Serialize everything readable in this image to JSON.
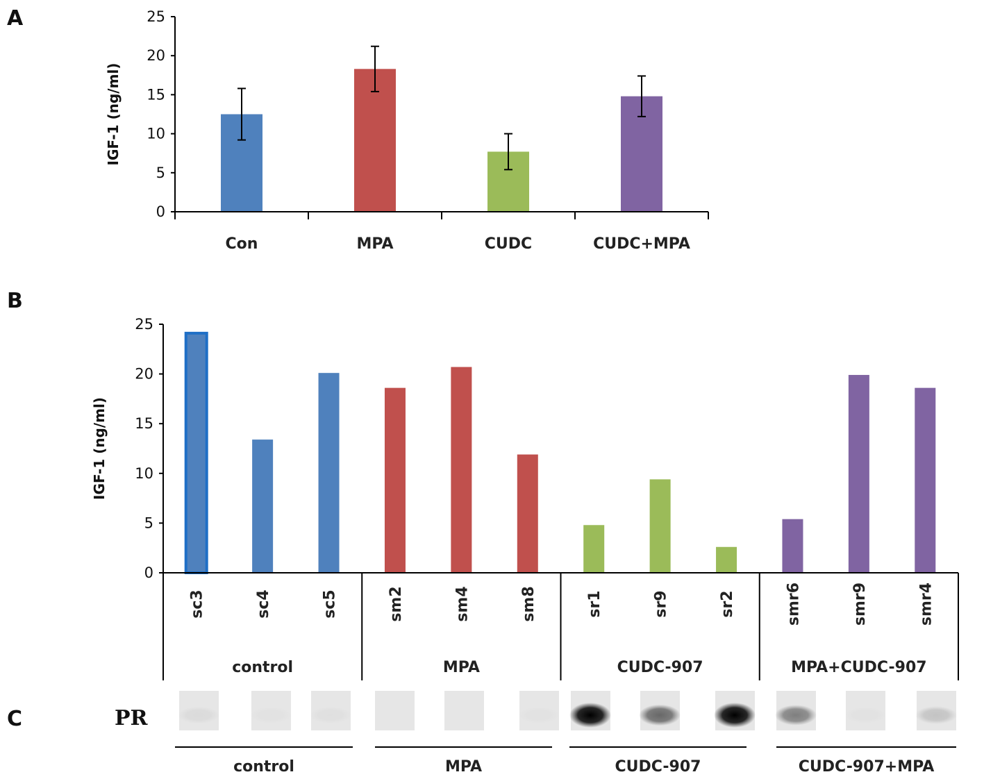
{
  "panels": {
    "a": "A",
    "b": "B",
    "c": "C"
  },
  "chart_data": [
    {
      "type": "bar",
      "panel": "A",
      "title": "",
      "xlabel": "",
      "ylabel": "IGF-1 (ng/ml)",
      "ylim": [
        0,
        25
      ],
      "yticks": [
        "0",
        "5",
        "10",
        "15",
        "20",
        "25"
      ],
      "categories": [
        "Con",
        "MPA",
        "CUDC",
        "CUDC+MPA"
      ],
      "values": [
        12.5,
        18.3,
        7.7,
        14.8
      ],
      "error": [
        3.3,
        2.9,
        2.3,
        2.6
      ],
      "colors": [
        "#4f81bd",
        "#c0504d",
        "#9bbb59",
        "#8064a2"
      ],
      "grid": false
    },
    {
      "type": "bar",
      "panel": "B",
      "title": "",
      "xlabel": "",
      "ylabel": "IGF-1 (ng/ml)",
      "ylim": [
        0,
        25
      ],
      "yticks": [
        "0",
        "5",
        "10",
        "15",
        "20",
        "25"
      ],
      "categories": [
        "sc3",
        "sc4",
        "sc5",
        "sm2",
        "sm4",
        "sm8",
        "sr1",
        "sr9",
        "sr2",
        "smr6",
        "smr9",
        "smr4"
      ],
      "values": [
        24.1,
        13.4,
        20.1,
        18.6,
        20.7,
        11.9,
        4.8,
        9.4,
        2.6,
        5.4,
        19.9,
        18.6
      ],
      "groups": [
        "control",
        "MPA",
        "CUDC-907",
        "MPA+CUDC-907"
      ],
      "colors": [
        "#4f81bd",
        "#c0504d",
        "#9bbb59",
        "#8064a2"
      ],
      "grid": false
    }
  ],
  "blot": {
    "label": "PR",
    "groups": [
      "control",
      "MPA",
      "CUDC-907",
      "CUDC-907+MPA"
    ],
    "band_intensity": [
      0.05,
      0.02,
      0.03,
      0.0,
      0.0,
      0.02,
      1.0,
      0.55,
      1.0,
      0.45,
      0.02,
      0.15
    ]
  }
}
